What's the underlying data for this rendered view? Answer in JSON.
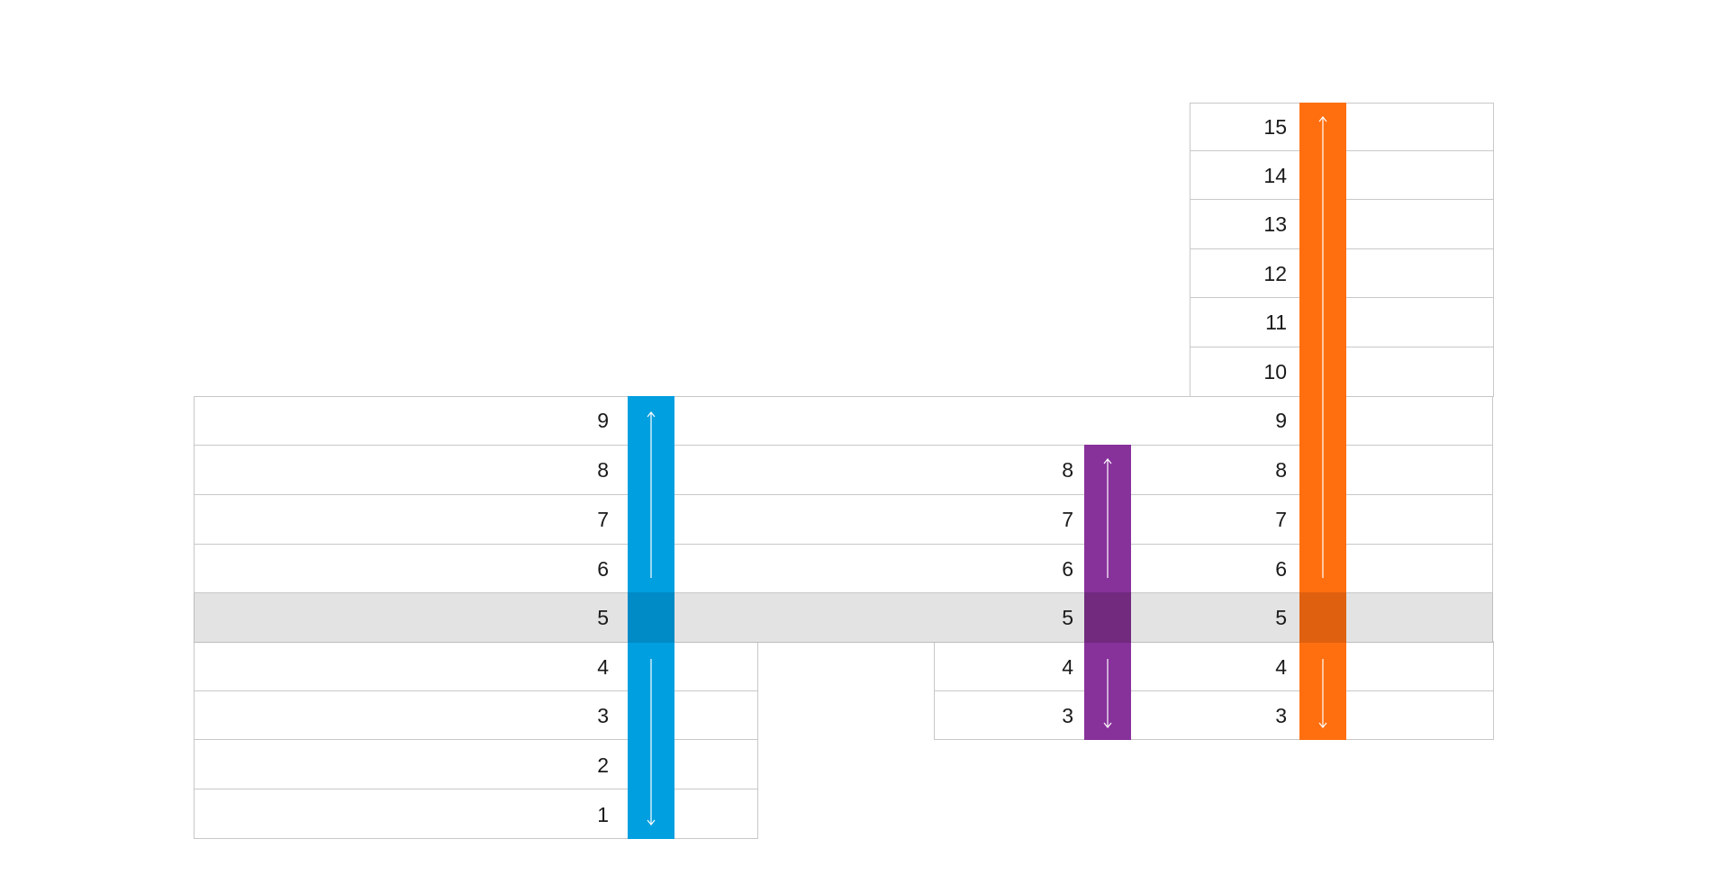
{
  "diagram": {
    "highlight_floor": "5",
    "groups": [
      {
        "id": "left",
        "floors": [
          "1",
          "2",
          "3",
          "4",
          "5",
          "6",
          "7",
          "8",
          "9"
        ],
        "label_side": "left-of-band",
        "band_color": "#009fe0",
        "band_dark_color": "#0088c4",
        "band_floors": [
          "1",
          "9"
        ],
        "arrow_up": true,
        "arrow_down": true
      },
      {
        "id": "middle",
        "floors": [
          "3",
          "4",
          "5",
          "6",
          "7",
          "8"
        ],
        "band_color": "#87319a",
        "band_dark_color": "#712a82",
        "band_floors": [
          "3",
          "8"
        ],
        "arrow_up": true,
        "arrow_down": true
      },
      {
        "id": "right",
        "floors": [
          "3",
          "4",
          "5",
          "6",
          "7",
          "8",
          "9",
          "10",
          "11",
          "12",
          "13",
          "14",
          "15"
        ],
        "band_color": "#ff6f10",
        "band_dark_color": "#db5e12",
        "band_floors": [
          "3",
          "15"
        ],
        "arrow_up": true,
        "arrow_down": true
      }
    ]
  }
}
